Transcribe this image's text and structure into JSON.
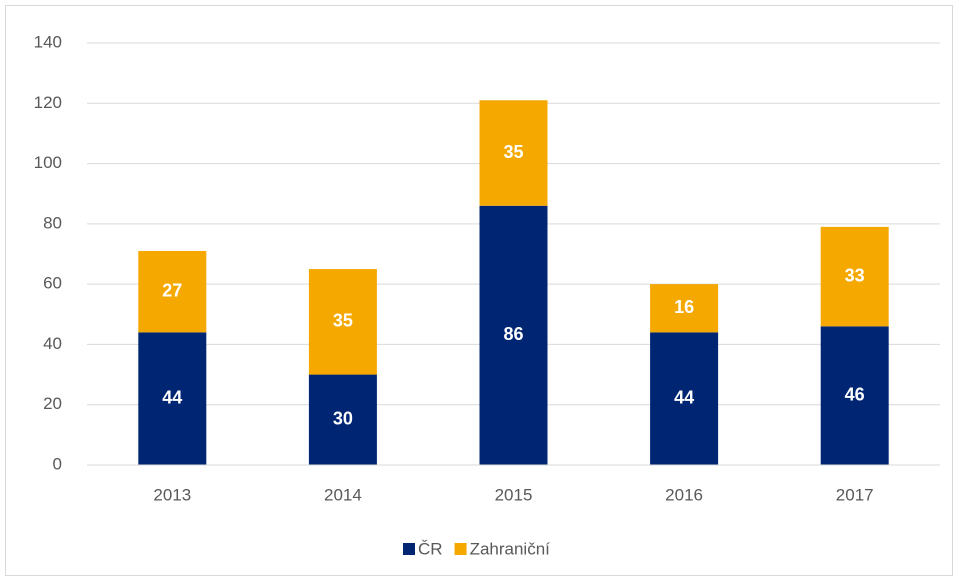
{
  "chart_data": {
    "type": "stacked_bar",
    "categories": [
      "2013",
      "2014",
      "2015",
      "2016",
      "2017"
    ],
    "series": [
      {
        "name": "ČR",
        "color": "#002673",
        "values": [
          44,
          30,
          86,
          44,
          46
        ]
      },
      {
        "name": "Zahraniční",
        "color": "#f5a800",
        "values": [
          27,
          35,
          35,
          16,
          33
        ]
      }
    ],
    "ylim": [
      0,
      140
    ],
    "yticks": [
      0,
      20,
      40,
      60,
      80,
      100,
      120,
      140
    ],
    "grid": true,
    "legend": "bottom"
  }
}
